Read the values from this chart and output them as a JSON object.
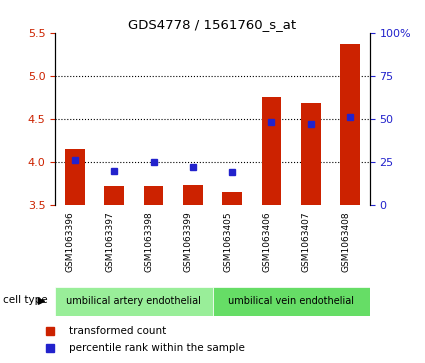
{
  "title": "GDS4778 / 1561760_s_at",
  "samples": [
    "GSM1063396",
    "GSM1063397",
    "GSM1063398",
    "GSM1063399",
    "GSM1063405",
    "GSM1063406",
    "GSM1063407",
    "GSM1063408"
  ],
  "transformed_count": [
    4.15,
    3.72,
    3.72,
    3.73,
    3.65,
    4.75,
    4.68,
    5.37
  ],
  "percentile_rank": [
    26,
    20,
    25,
    22,
    19,
    48,
    47,
    51
  ],
  "ylim_left": [
    3.5,
    5.5
  ],
  "ylim_right": [
    0,
    100
  ],
  "yticks_left": [
    3.5,
    4.0,
    4.5,
    5.0,
    5.5
  ],
  "yticks_right": [
    0,
    25,
    50,
    75,
    100
  ],
  "ytick_labels_right": [
    "0",
    "25",
    "50",
    "75",
    "100%"
  ],
  "bar_color": "#cc2200",
  "percentile_color": "#2222cc",
  "cell_type_colors": [
    "#99ee99",
    "#66dd66"
  ],
  "cell_type_labels": [
    "umbilical artery endothelial",
    "umbilical vein endothelial"
  ],
  "cell_type_label": "cell type",
  "legend_transformed": "transformed count",
  "legend_percentile": "percentile rank within the sample",
  "bar_width": 0.5,
  "baseline": 3.5,
  "background_color": "#ffffff",
  "plot_area_color": "#ffffff",
  "tick_label_area_color": "#cccccc",
  "grid_yticks": [
    4.0,
    4.5,
    5.0
  ]
}
